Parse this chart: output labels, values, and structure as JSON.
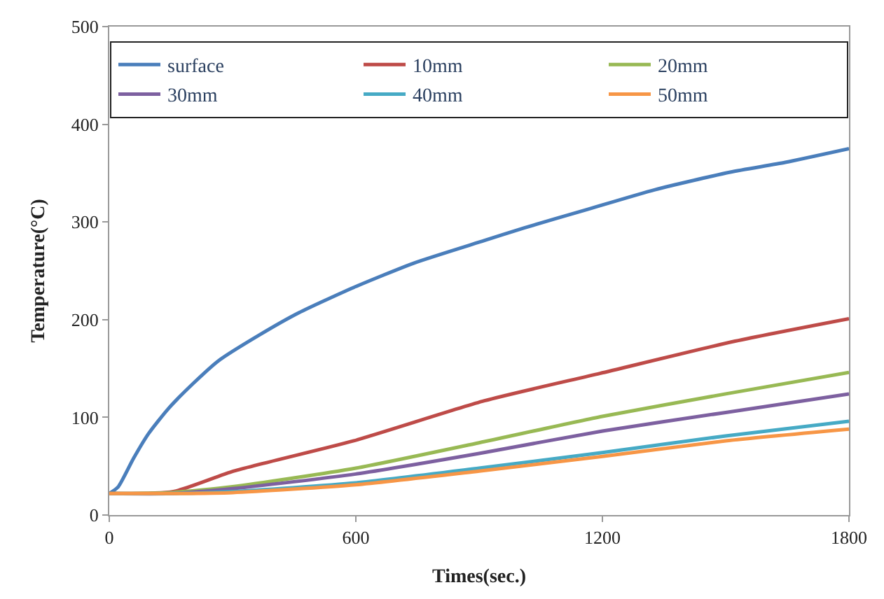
{
  "chart_data": {
    "type": "line",
    "xlabel": "Times(sec.)",
    "ylabel": "Temperature(°C)",
    "xlim": [
      0,
      1800
    ],
    "xticks": [
      0,
      600,
      1200,
      1800
    ],
    "ylim": [
      0,
      500
    ],
    "yticks": [
      0,
      100,
      200,
      300,
      400,
      500
    ],
    "legend": "top",
    "marker": "none",
    "line_style": "solid",
    "series": [
      {
        "name": "surface",
        "color": "#4a7ebb",
        "x": [
          0,
          22,
          59,
          95,
          144,
          205,
          266,
          364,
          461,
          595,
          742,
          913,
          1010,
          1157,
          1328,
          1511,
          1645,
          1800
        ],
        "values": [
          22,
          29,
          58,
          83,
          109,
          135,
          158,
          184,
          207,
          233,
          258,
          281,
          294,
          312,
          333,
          351,
          361,
          375
        ]
      },
      {
        "name": "10mm",
        "color": "#be4b48",
        "x": [
          0,
          156,
          303,
          595,
          913,
          1194,
          1523,
          1800
        ],
        "values": [
          22,
          24,
          45,
          76,
          117,
          145,
          178,
          201
        ]
      },
      {
        "name": "20mm",
        "color": "#98b954",
        "x": [
          0,
          150,
          300,
          600,
          900,
          1200,
          1500,
          1800
        ],
        "values": [
          22,
          23,
          29,
          48,
          74,
          101,
          124,
          146
        ]
      },
      {
        "name": "30mm",
        "color": "#7d60a0",
        "x": [
          0,
          150,
          300,
          600,
          900,
          1200,
          1500,
          1800
        ],
        "values": [
          22,
          22,
          27,
          42,
          63,
          86,
          105,
          124
        ]
      },
      {
        "name": "40mm",
        "color": "#46aac5",
        "x": [
          0,
          150,
          300,
          600,
          900,
          1200,
          1500,
          1800
        ],
        "values": [
          22,
          22,
          24,
          33,
          48,
          64,
          81,
          96
        ]
      },
      {
        "name": "50mm",
        "color": "#f79646",
        "x": [
          0,
          150,
          300,
          600,
          900,
          1200,
          1500,
          1800
        ],
        "values": [
          22,
          22,
          23,
          31,
          45,
          60,
          76,
          88
        ]
      }
    ]
  }
}
